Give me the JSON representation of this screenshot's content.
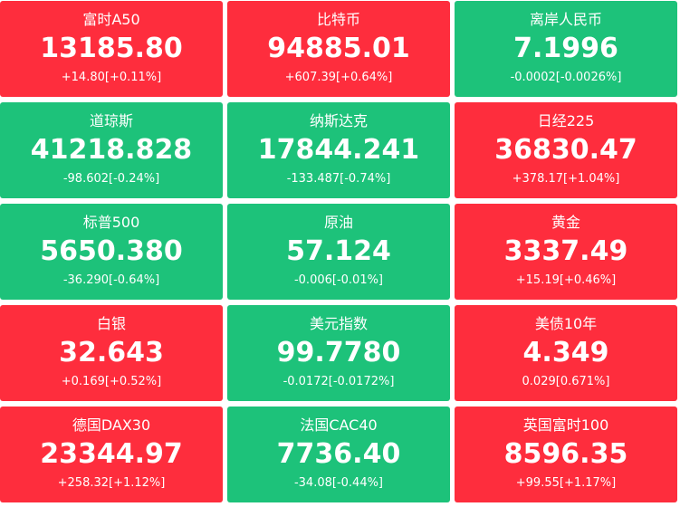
{
  "colors": {
    "up": "#fe2d3d",
    "down": "#1dc27a",
    "text": "#ffffff"
  },
  "tiles": [
    {
      "name": "富时A50",
      "value": "13185.80",
      "change": "+14.80[+0.11%]",
      "trend": "up"
    },
    {
      "name": "比特币",
      "value": "94885.01",
      "change": "+607.39[+0.64%]",
      "trend": "up"
    },
    {
      "name": "离岸人民币",
      "value": "7.1996",
      "change": "-0.0002[-0.0026%]",
      "trend": "down"
    },
    {
      "name": "道琼斯",
      "value": "41218.828",
      "change": "-98.602[-0.24%]",
      "trend": "down"
    },
    {
      "name": "纳斯达克",
      "value": "17844.241",
      "change": "-133.487[-0.74%]",
      "trend": "down"
    },
    {
      "name": "日经225",
      "value": "36830.47",
      "change": "+378.17[+1.04%]",
      "trend": "up"
    },
    {
      "name": "标普500",
      "value": "5650.380",
      "change": "-36.290[-0.64%]",
      "trend": "down"
    },
    {
      "name": "原油",
      "value": "57.124",
      "change": "-0.006[-0.01%]",
      "trend": "down"
    },
    {
      "name": "黄金",
      "value": "3337.49",
      "change": "+15.19[+0.46%]",
      "trend": "up"
    },
    {
      "name": "白银",
      "value": "32.643",
      "change": "+0.169[+0.52%]",
      "trend": "up"
    },
    {
      "name": "美元指数",
      "value": "99.7780",
      "change": "-0.0172[-0.0172%]",
      "trend": "down"
    },
    {
      "name": "美债10年",
      "value": "4.349",
      "change": "0.029[0.671%]",
      "trend": "up"
    },
    {
      "name": "德国DAX30",
      "value": "23344.97",
      "change": "+258.32[+1.12%]",
      "trend": "up"
    },
    {
      "name": "法国CAC40",
      "value": "7736.40",
      "change": "-34.08[-0.44%]",
      "trend": "down"
    },
    {
      "name": "英国富时100",
      "value": "8596.35",
      "change": "+99.55[+1.17%]",
      "trend": "up"
    }
  ]
}
